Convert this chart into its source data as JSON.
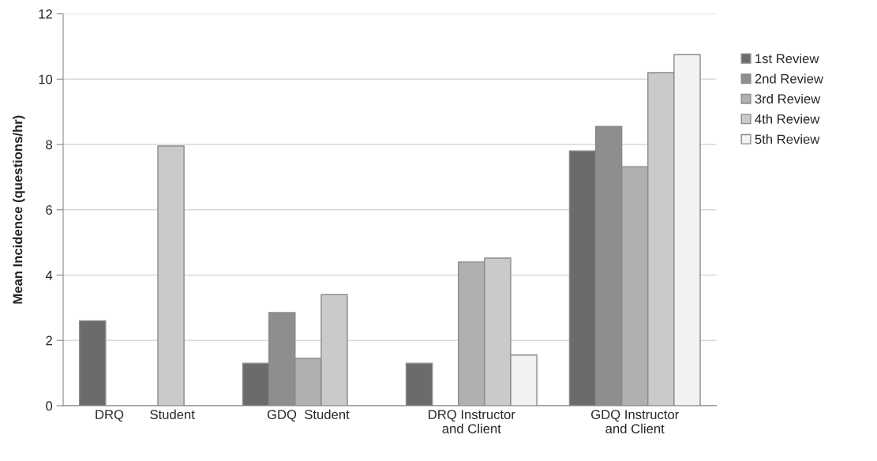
{
  "chart_data": {
    "type": "bar",
    "categories": [
      "DRQ       Student",
      "GDQ  Student",
      "DRQ Instructor\nand Client",
      "GDQ Instructor\nand Client"
    ],
    "series": [
      {
        "name": "1st Review",
        "color": "#6b6b6b",
        "values": [
          2.6,
          1.3,
          1.3,
          7.8
        ]
      },
      {
        "name": "2nd Review",
        "color": "#8e8e8e",
        "values": [
          null,
          2.85,
          null,
          8.55
        ]
      },
      {
        "name": "3rd Review",
        "color": "#b0b0b0",
        "values": [
          null,
          1.45,
          4.4,
          7.32
        ]
      },
      {
        "name": "4th Review",
        "color": "#cacaca",
        "values": [
          7.95,
          3.4,
          4.52,
          10.2
        ]
      },
      {
        "name": "5th Review",
        "color": "#f2f2f2",
        "values": [
          null,
          null,
          1.55,
          10.75
        ]
      }
    ],
    "ylabel": "Mean Incidence (questions/hr)",
    "ylim": [
      0,
      12
    ],
    "yticks": [
      0,
      2,
      4,
      6,
      8,
      10,
      12
    ],
    "grid": "y",
    "legend": "right"
  }
}
